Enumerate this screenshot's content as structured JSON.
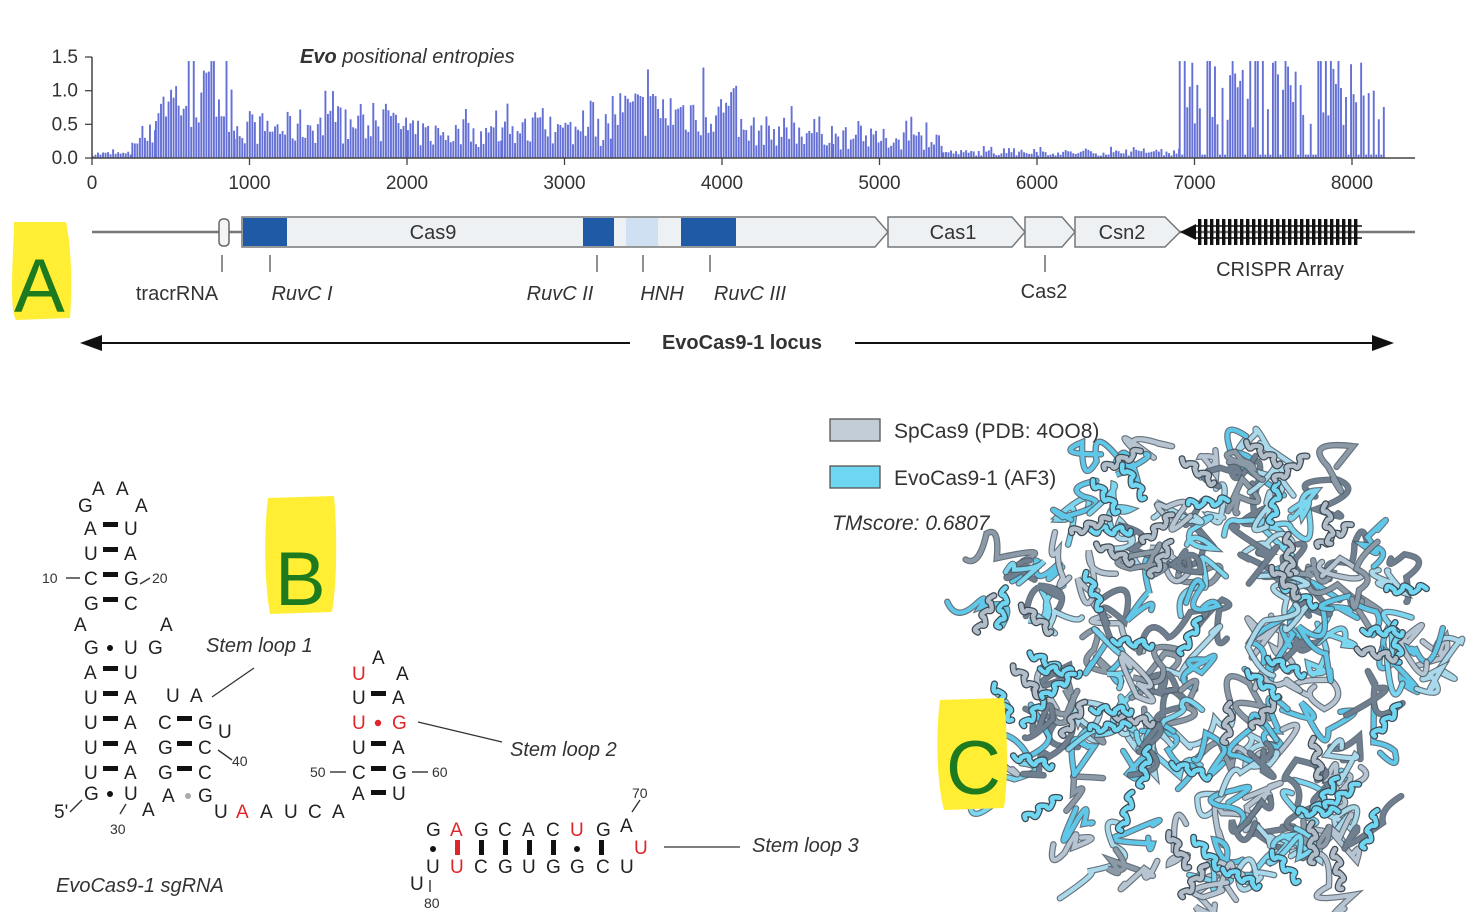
{
  "panel_labels": {
    "a": "A",
    "b": "B",
    "c": "C"
  },
  "chart_data": {
    "type": "bar",
    "title_bold": "Evo",
    "title_rest": " positional entropies",
    "xlabel": "",
    "ylabel": "",
    "xlim": [
      0,
      8400
    ],
    "ylim": [
      0,
      1.5
    ],
    "xticks": [
      0,
      1000,
      2000,
      3000,
      4000,
      5000,
      6000,
      7000,
      8000
    ],
    "xtick_labels": [
      "0",
      "1000",
      "2000",
      "3000",
      "4000",
      "5000",
      "6000",
      "7000",
      "8000"
    ],
    "yticks": [
      0,
      0.5,
      1.0,
      1.5
    ],
    "ytick_labels": [
      "0.0",
      "0.5",
      "1.0",
      "1.5"
    ],
    "segments": [
      {
        "x0": 0,
        "x1": 250,
        "level": 0.08
      },
      {
        "x0": 250,
        "x1": 400,
        "level": 0.35
      },
      {
        "x0": 400,
        "x1": 900,
        "level": 1.1
      },
      {
        "x0": 900,
        "x1": 1300,
        "level": 0.55
      },
      {
        "x0": 1300,
        "x1": 2000,
        "level": 0.6
      },
      {
        "x0": 2000,
        "x1": 2600,
        "level": 0.45
      },
      {
        "x0": 2600,
        "x1": 3300,
        "level": 0.5
      },
      {
        "x0": 3300,
        "x1": 4100,
        "level": 0.85
      },
      {
        "x0": 4100,
        "x1": 4700,
        "level": 0.5
      },
      {
        "x0": 4700,
        "x1": 5400,
        "level": 0.35
      },
      {
        "x0": 5400,
        "x1": 6000,
        "level": 0.1
      },
      {
        "x0": 6000,
        "x1": 6900,
        "level": 0.1
      },
      {
        "x0": 6900,
        "x1": 8200,
        "level": 1.3
      }
    ]
  },
  "locus": {
    "genes": {
      "cas9": "Cas9",
      "cas1": "Cas1",
      "csn2": "Csn2"
    },
    "features": {
      "tracrRNA": "tracrRNA",
      "ruvc1": "RuvC I",
      "ruvc2": "RuvC II",
      "hnh": "HNH",
      "ruvc3": "RuvC III",
      "cas2": "Cas2",
      "crispr": "CRISPR Array"
    },
    "locus_label": "EvoCas9-1 locus"
  },
  "sgrna": {
    "title": "EvoCas9-1 sgRNA",
    "stem_loop_1": "Stem loop 1",
    "stem_loop_2": "Stem loop 2",
    "stem_loop_3": "Stem loop 3",
    "five_prime": "5'",
    "pos_10": "10",
    "pos_20": "20",
    "pos_30": "30",
    "pos_40": "40",
    "pos_50": "50",
    "pos_60": "60",
    "pos_70": "70",
    "pos_80": "80",
    "hairpin_loop": [
      "G",
      "A",
      "A",
      "A"
    ],
    "stem_a_left": [
      "A",
      "U",
      "C",
      "G"
    ],
    "stem_a_right": [
      "U",
      "A",
      "G",
      "C"
    ],
    "bulge_left": "A",
    "bulge_right": "A",
    "stem_b_left": [
      "G",
      "A",
      "U",
      "U",
      "U",
      "U",
      "G"
    ],
    "stem_b_right": [
      "U",
      "U",
      "A",
      "A",
      "A",
      "A",
      "U"
    ],
    "extra_g": "G",
    "bottom_a1": "A",
    "bottom_a2": "A",
    "bottom_g": "G",
    "sl1_loop": [
      "U",
      "A"
    ],
    "sl1_left": [
      "C",
      "G",
      "G"
    ],
    "sl1_right": [
      "G",
      "C",
      "C"
    ],
    "sl1_u": "U",
    "linker": [
      "U",
      "A",
      "A",
      "U",
      "C",
      "A"
    ],
    "sl2_loop": [
      "U",
      "A",
      "A"
    ],
    "sl2_left": [
      "U",
      "U",
      "U",
      "C",
      "A"
    ],
    "sl2_right": [
      "A",
      "G",
      "A",
      "G",
      "U"
    ],
    "sl3_top": [
      "G",
      "A",
      "G",
      "C",
      "A",
      "C",
      "U",
      "G",
      "A"
    ],
    "sl3_bottom": [
      "U",
      "C",
      "G",
      "U",
      "G",
      "G",
      "C",
      "U"
    ],
    "sl3_end": "U",
    "tail": [
      "U",
      "U"
    ]
  },
  "structure": {
    "legend": [
      {
        "label": "SpCas9 (PDB: 4OO8)",
        "color": "#c3cdd8"
      },
      {
        "label": "EvoCas9-1 (AF3)",
        "color": "#6fd6f2"
      }
    ],
    "tmscore": "TMscore: 0.6807"
  },
  "colors": {
    "bar": "#6470d6",
    "domain_dark": "#1f5aa6",
    "domain_light": "#cfe0f2",
    "gene_fill": "#eef1f4",
    "highlight": "#ffee33",
    "letter": "#1e7a1e",
    "red": "#e0242a"
  }
}
